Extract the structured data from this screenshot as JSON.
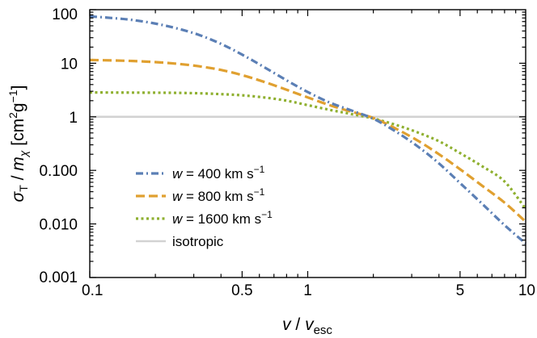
{
  "chart_data": {
    "type": "line",
    "xscale": "log",
    "yscale": "log",
    "xlim": [
      0.1,
      10
    ],
    "ylim": [
      0.001,
      100
    ],
    "grid": false,
    "legend_position": "lower-left",
    "xlabel": {
      "main": "v",
      "sep": " / ",
      "sub_main": "v",
      "sub": "esc"
    },
    "ylabel": {
      "sym": "σ",
      "sub": "T",
      "sep": " / ",
      "m": "m",
      "msub": "χ",
      "unit_open": " [cm",
      "exp1": "2",
      "g": "g",
      "exp2": "−1",
      "unit_close": "]"
    },
    "xticks": [
      {
        "value": 0.1,
        "label": "0.1"
      },
      {
        "value": 0.5,
        "label": "0.5"
      },
      {
        "value": 1,
        "label": "1"
      },
      {
        "value": 5,
        "label": "5"
      },
      {
        "value": 10,
        "label": "10"
      }
    ],
    "yticks": [
      {
        "value": 100,
        "label": "100"
      },
      {
        "value": 10,
        "label": "10"
      },
      {
        "value": 1,
        "label": "1"
      },
      {
        "value": 0.1,
        "label": "0.100"
      },
      {
        "value": 0.01,
        "label": "0.010"
      },
      {
        "value": 0.001,
        "label": "0.001"
      }
    ],
    "series": [
      {
        "name": {
          "w": "w",
          "rest": " = 400 km s",
          "exp": "−1"
        },
        "color": "#5b7fb5",
        "dash": "9 4 2 4",
        "x": [
          0.1,
          0.126,
          0.158,
          0.2,
          0.25,
          0.316,
          0.4,
          0.5,
          0.63,
          0.8,
          1.0,
          1.26,
          1.58,
          2.0,
          2.5,
          3.16,
          4.0,
          5.0,
          6.3,
          8.0,
          10.0
        ],
        "y": [
          75,
          70,
          64,
          55,
          45,
          34,
          23,
          14.5,
          8.5,
          4.8,
          2.9,
          1.85,
          1.32,
          0.92,
          0.55,
          0.29,
          0.135,
          0.058,
          0.024,
          0.0095,
          0.0043
        ]
      },
      {
        "name": {
          "w": "w",
          "rest": " = 800 km s",
          "exp": "−1"
        },
        "color": "#e0a030",
        "dash": "11 5",
        "x": [
          0.1,
          0.126,
          0.158,
          0.2,
          0.25,
          0.316,
          0.4,
          0.5,
          0.63,
          0.8,
          1.0,
          1.26,
          1.58,
          2.0,
          2.5,
          3.16,
          4.0,
          5.0,
          6.3,
          8.0,
          10.0
        ],
        "y": [
          11.5,
          11.3,
          11.0,
          10.5,
          9.8,
          8.8,
          7.5,
          6.0,
          4.5,
          3.2,
          2.3,
          1.65,
          1.25,
          0.95,
          0.62,
          0.37,
          0.2,
          0.105,
          0.052,
          0.025,
          0.011
        ]
      },
      {
        "name": {
          "w": "w",
          "rest": " = 1600 km s",
          "exp": "−1"
        },
        "color": "#8fb030",
        "dash": "3 3.5",
        "x": [
          0.1,
          0.126,
          0.158,
          0.2,
          0.25,
          0.316,
          0.4,
          0.5,
          0.63,
          0.8,
          1.0,
          1.26,
          1.58,
          2.0,
          2.5,
          3.16,
          4.0,
          5.0,
          6.3,
          8.0,
          10.0
        ],
        "y": [
          2.85,
          2.84,
          2.83,
          2.82,
          2.8,
          2.75,
          2.65,
          2.52,
          2.3,
          2.0,
          1.65,
          1.35,
          1.13,
          0.93,
          0.72,
          0.52,
          0.35,
          0.21,
          0.12,
          0.062,
          0.019
        ]
      },
      {
        "name": {
          "w": "",
          "rest": "isotropic",
          "exp": ""
        },
        "color": "#d2d2d2",
        "dash": "",
        "x": [
          0.1,
          10.0
        ],
        "y": [
          1,
          1
        ]
      }
    ]
  }
}
